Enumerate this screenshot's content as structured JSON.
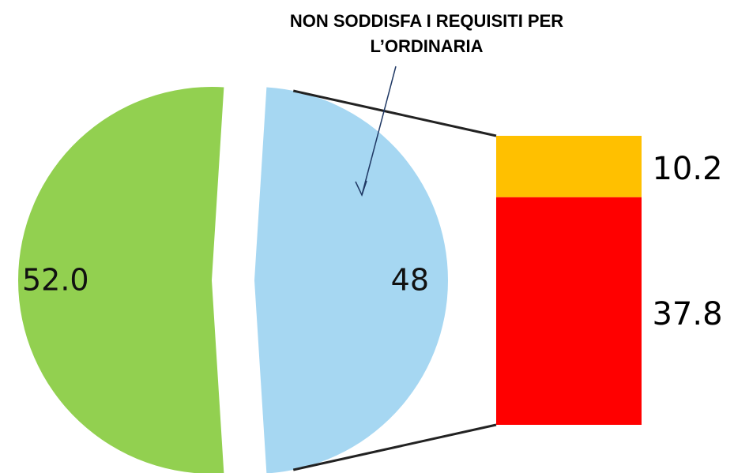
{
  "chart_data": {
    "type": "pie",
    "annotation": [
      "NON SODDISFA I REQUISITI PER",
      "L’ORDINARIA"
    ],
    "values": [
      52.0,
      48
    ],
    "value_labels": [
      "52.0",
      "48"
    ],
    "colors": [
      "#92d050",
      "#a6d7f2"
    ],
    "breakdown": {
      "values": [
        10.2,
        37.8
      ],
      "colors": [
        "#ffc000",
        "#ff0000"
      ]
    }
  }
}
